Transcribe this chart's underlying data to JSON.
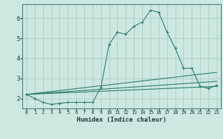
{
  "xlabel": "Humidex (Indice chaleur)",
  "background_color": "#cce8e0",
  "grid_color": "#aaccc4",
  "line_color": "#2a7a6a",
  "xlim": [
    -0.5,
    23.5
  ],
  "ylim": [
    1.5,
    6.7
  ],
  "yticks": [
    2,
    3,
    4,
    5,
    6
  ],
  "xticks": [
    0,
    1,
    2,
    3,
    4,
    5,
    6,
    7,
    8,
    9,
    10,
    11,
    12,
    13,
    14,
    15,
    16,
    17,
    18,
    19,
    20,
    21,
    22,
    23
  ],
  "series": [
    {
      "x": [
        0,
        1,
        2,
        3,
        4,
        5,
        6,
        7,
        8,
        9,
        10,
        11,
        12,
        13,
        14,
        15,
        16,
        17,
        18,
        19,
        20,
        21,
        22,
        23
      ],
      "y": [
        2.2,
        2.0,
        1.8,
        1.7,
        1.75,
        1.8,
        1.8,
        1.8,
        1.8,
        2.55,
        4.7,
        5.3,
        5.2,
        5.6,
        5.8,
        6.4,
        6.3,
        5.3,
        4.5,
        3.5,
        3.5,
        2.6,
        2.5,
        2.65
      ],
      "has_markers": true
    },
    {
      "x": [
        0,
        23
      ],
      "y": [
        2.2,
        3.3
      ],
      "has_markers": false
    },
    {
      "x": [
        0,
        23
      ],
      "y": [
        2.2,
        2.85
      ],
      "has_markers": false
    },
    {
      "x": [
        0,
        23
      ],
      "y": [
        2.2,
        2.6
      ],
      "has_markers": false
    }
  ]
}
